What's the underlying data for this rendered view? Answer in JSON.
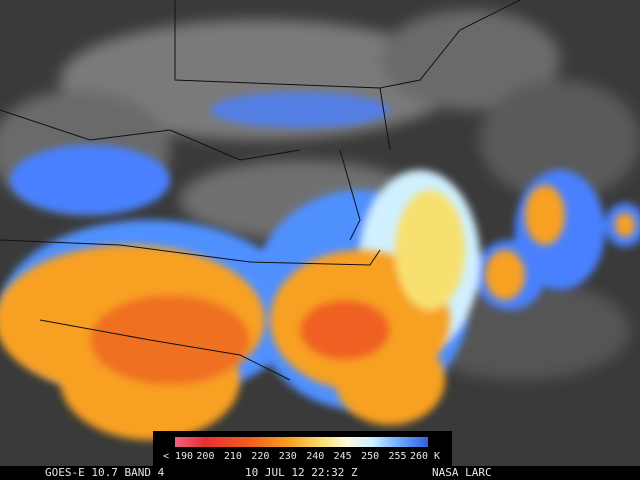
{
  "colorbar": {
    "labels": [
      "< 190",
      "200",
      "210",
      "220",
      "230",
      "240",
      "245",
      "250",
      "255",
      "260 K"
    ]
  },
  "footer": {
    "satellite": "GOES-E 10.7 BAND 4",
    "time": "10 JUL 12 22:32 Z",
    "source": "NASA LARC"
  }
}
